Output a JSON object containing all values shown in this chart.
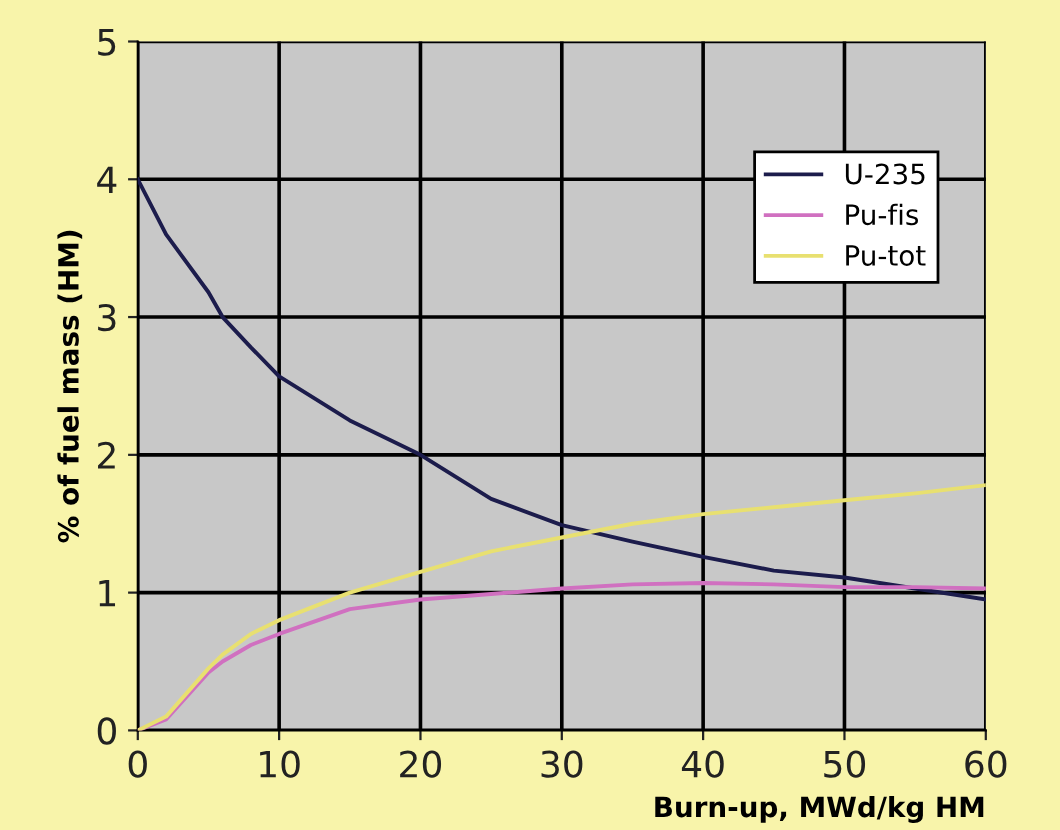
{
  "chart_data": {
    "type": "line",
    "xlabel": "Burn-up, MWd/kg HM",
    "ylabel": "% of fuel mass (HM)",
    "x": [
      0,
      2,
      5,
      6,
      8,
      10,
      15,
      20,
      25,
      30,
      35,
      40,
      45,
      50,
      55,
      60
    ],
    "series": [
      {
        "name": "U-235",
        "color": "#1c1c4c",
        "values": [
          4.0,
          3.6,
          3.18,
          3.0,
          2.78,
          2.57,
          2.25,
          2.0,
          1.68,
          1.49,
          1.37,
          1.26,
          1.16,
          1.11,
          1.03,
          0.95
        ]
      },
      {
        "name": "Pu-fis",
        "color": "#d070c0",
        "values": [
          0,
          0.08,
          0.42,
          0.5,
          0.62,
          0.7,
          0.88,
          0.95,
          0.99,
          1.03,
          1.06,
          1.07,
          1.06,
          1.04,
          1.04,
          1.03
        ]
      },
      {
        "name": "Pu-tot",
        "color": "#e8e070",
        "values": [
          0,
          0.1,
          0.45,
          0.55,
          0.7,
          0.8,
          1.0,
          1.15,
          1.3,
          1.4,
          1.5,
          1.57,
          1.62,
          1.67,
          1.72,
          1.78
        ]
      }
    ],
    "xlim": [
      0,
      60
    ],
    "ylim": [
      0,
      5
    ],
    "xticks": [
      0,
      10,
      20,
      30,
      40,
      50,
      60
    ],
    "yticks": [
      0,
      1,
      2,
      3,
      4,
      5
    ],
    "grid": true,
    "legend": "top right",
    "marker": "none",
    "line_style": "solid"
  }
}
